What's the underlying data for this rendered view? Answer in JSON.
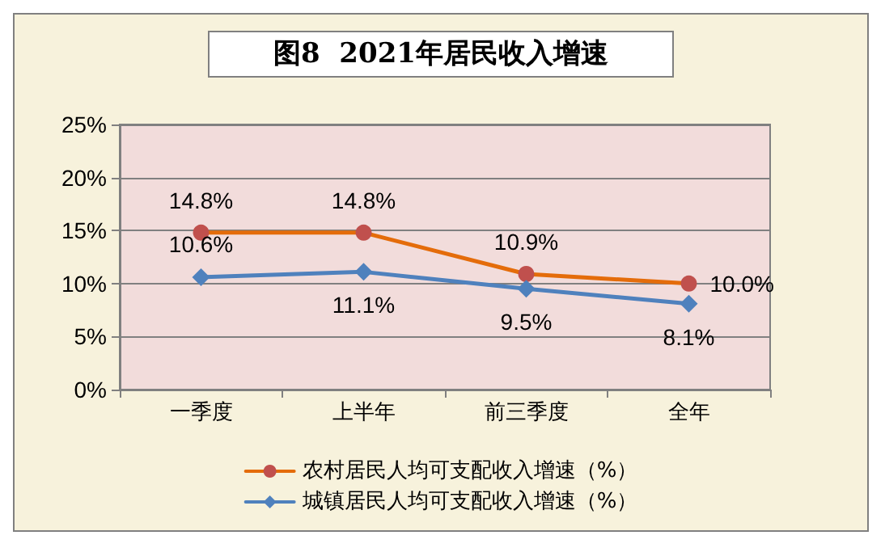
{
  "chart_data": {
    "type": "line",
    "title": "图8  2021年居民收入增速",
    "categories": [
      "一季度",
      "上半年",
      "前三季度",
      "全年"
    ],
    "series": [
      {
        "name": "农村居民人均可支配收入增速（%）",
        "color": "#e46c0a",
        "marker": "circle",
        "values": [
          14.8,
          14.8,
          10.9,
          10.0
        ],
        "value_labels": [
          "14.8%",
          "14.8%",
          "10.9%",
          "10.0%"
        ]
      },
      {
        "name": "城镇居民人均可支配收入增速（%）",
        "color": "#4f81bd",
        "marker": "diamond",
        "values": [
          10.6,
          11.1,
          9.5,
          8.1
        ],
        "value_labels": [
          "10.6%",
          "11.1%",
          "9.5%",
          "8.1%"
        ]
      }
    ],
    "ylim": [
      0,
      25
    ],
    "yticks": [
      {
        "value": 0,
        "label": "0%"
      },
      {
        "value": 5,
        "label": "5%"
      },
      {
        "value": 10,
        "label": "10%"
      },
      {
        "value": 15,
        "label": "15%"
      },
      {
        "value": 20,
        "label": "20%"
      },
      {
        "value": 25,
        "label": "25%"
      }
    ],
    "grid": "y",
    "legend": "bottom",
    "line_style": "solid"
  }
}
